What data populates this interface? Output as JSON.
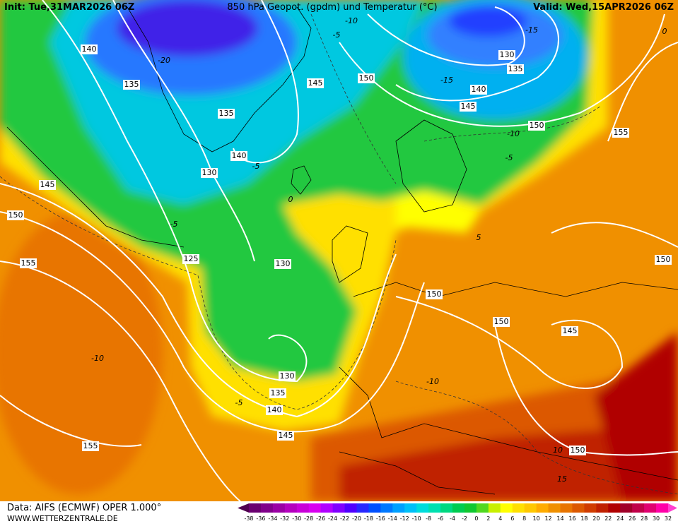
{
  "header": {
    "init": "Init: Tue,31MAR2026 06Z",
    "title": "850 hPa Geopot. (gpdm) und Temperatur (°C)",
    "valid": "Valid: Wed,15APR2026 06Z"
  },
  "footer": {
    "source": "Data: AIFS (ECMWF) OPER 1.000°",
    "website": "WWW.WETTERZENTRALE.DE"
  },
  "legend": {
    "labels": [
      -38,
      -36,
      -34,
      -32,
      -30,
      -28,
      -26,
      -24,
      -22,
      -20,
      -18,
      -16,
      -14,
      -12,
      -10,
      -8,
      -6,
      -4,
      -2,
      0,
      2,
      4,
      6,
      8,
      10,
      12,
      14,
      16,
      18,
      20,
      22,
      24,
      26,
      28,
      30,
      32
    ],
    "colors": [
      "#500050",
      "#6a0070",
      "#80008a",
      "#9a00a4",
      "#b400be",
      "#c800d8",
      "#d800f0",
      "#b000ff",
      "#8000ff",
      "#5000ff",
      "#2828ff",
      "#0050ff",
      "#0078ff",
      "#00a0ff",
      "#00c0f8",
      "#00dcdc",
      "#00e0b0",
      "#00d880",
      "#00cc50",
      "#10c830",
      "#50d820",
      "#c8f000",
      "#ffff00",
      "#ffe000",
      "#ffc800",
      "#ffac00",
      "#f09000",
      "#e87400",
      "#dc5800",
      "#d03c00",
      "#c02000",
      "#b00000",
      "#a00028",
      "#c00048",
      "#e00070",
      "#ff00a8",
      "#ff40d0"
    ]
  },
  "geopotential_labels": [
    140,
    135,
    135,
    140,
    130,
    145,
    150,
    155,
    125,
    130,
    150,
    145,
    130,
    135,
    140,
    145,
    150,
    155,
    150,
    150,
    145,
    150,
    130,
    135,
    140,
    145,
    155,
    150
  ],
  "temperature_labels": [
    -10,
    -5,
    -15,
    -15,
    -10,
    -5,
    -5,
    -5,
    -10,
    -5,
    -10,
    10,
    15,
    0,
    -20,
    0,
    5
  ]
}
